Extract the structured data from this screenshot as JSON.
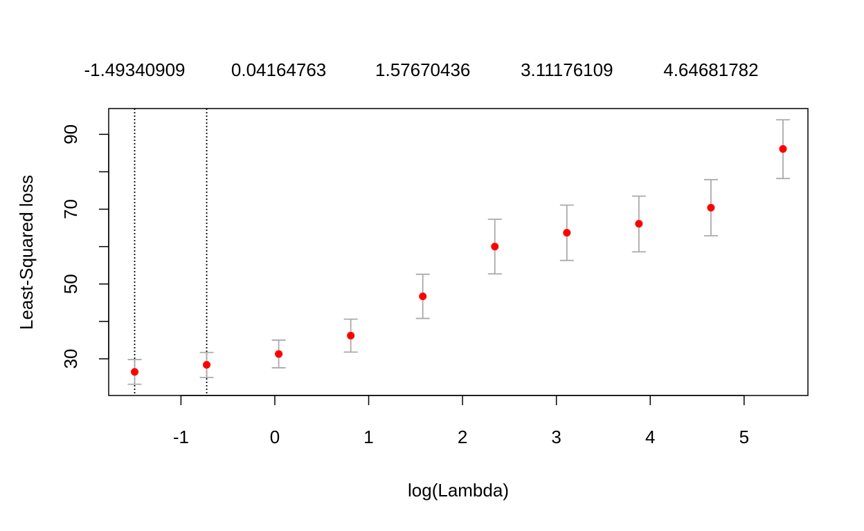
{
  "chart_data": {
    "type": "scatter",
    "xlabel": "log(Lambda)",
    "ylabel": "Least-Squared loss",
    "xlim": [
      -1.77,
      5.68
    ],
    "ylim": [
      20.2,
      96.9
    ],
    "x_ticks": [
      -1,
      0,
      1,
      2,
      3,
      4,
      5
    ],
    "y_ticks": [
      30,
      40,
      50,
      60,
      70,
      80,
      90
    ],
    "y_tick_labels": [
      "30",
      "",
      "50",
      "",
      "70",
      "",
      "90"
    ],
    "top_axis_labels": [
      {
        "x": -1.49340909,
        "label": "-1.49340909"
      },
      {
        "x": 0.04164763,
        "label": "0.04164763"
      },
      {
        "x": 1.57670436,
        "label": "1.57670436"
      },
      {
        "x": 3.11176109,
        "label": "3.11176109"
      },
      {
        "x": 4.64681782,
        "label": "4.64681782"
      }
    ],
    "vlines": [
      -1.49340909,
      -0.7259
    ],
    "grid": false,
    "point_color": "#ff0000",
    "errorbar_color": "#aaaaaa",
    "series": [
      {
        "x": [
          -1.4934,
          -0.7259,
          0.0416,
          0.8092,
          1.5767,
          2.3442,
          3.1118,
          3.8793,
          4.6468,
          5.4144
        ],
        "y": [
          26.5,
          28.4,
          31.3,
          36.2,
          46.7,
          60.0,
          63.7,
          66.1,
          70.4,
          86.1
        ],
        "lower": [
          23.2,
          25.0,
          27.6,
          31.8,
          40.8,
          52.7,
          56.3,
          58.6,
          62.9,
          78.2
        ],
        "upper": [
          29.8,
          31.7,
          35.0,
          40.6,
          52.6,
          67.3,
          71.1,
          73.5,
          77.9,
          93.9
        ]
      }
    ]
  }
}
